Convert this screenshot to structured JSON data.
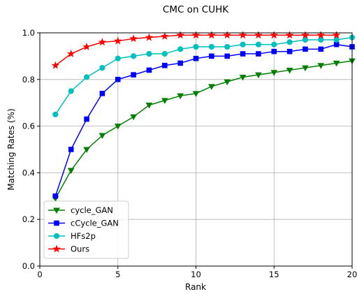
{
  "chart_data": {
    "type": "line",
    "title": "CMC on CUHK",
    "xlabel": "Rank",
    "ylabel": "Matching Rates (%)",
    "xlim": [
      0,
      20
    ],
    "ylim": [
      0,
      1.0
    ],
    "xticks": [
      0,
      5,
      10,
      15,
      20
    ],
    "yticks": [
      0.0,
      0.2,
      0.4,
      0.6,
      0.8,
      1.0
    ],
    "xtick_labels": [
      "0",
      "5",
      "10",
      "15",
      "20"
    ],
    "ytick_labels": [
      "0.0",
      "0.2",
      "0.4",
      "0.6",
      "0.8",
      "1.0"
    ],
    "grid": true,
    "legend_position": "lower-left",
    "x": [
      1,
      2,
      3,
      4,
      5,
      6,
      7,
      8,
      9,
      10,
      11,
      12,
      13,
      14,
      15,
      16,
      17,
      18,
      19,
      20
    ],
    "series": [
      {
        "name": "cycle_GAN",
        "color": "#007f00",
        "marker": "triangle-down",
        "values": [
          0.29,
          0.41,
          0.5,
          0.56,
          0.6,
          0.64,
          0.69,
          0.71,
          0.73,
          0.74,
          0.77,
          0.79,
          0.81,
          0.82,
          0.83,
          0.84,
          0.85,
          0.86,
          0.87,
          0.88
        ]
      },
      {
        "name": "cCycle_GAN",
        "color": "#0000ff",
        "marker": "square",
        "values": [
          0.3,
          0.5,
          0.63,
          0.74,
          0.8,
          0.82,
          0.84,
          0.86,
          0.87,
          0.89,
          0.9,
          0.9,
          0.91,
          0.91,
          0.92,
          0.92,
          0.93,
          0.93,
          0.95,
          0.94
        ]
      },
      {
        "name": "HFs2p",
        "color": "#00bfbf",
        "marker": "circle",
        "values": [
          0.65,
          0.75,
          0.81,
          0.85,
          0.89,
          0.9,
          0.91,
          0.91,
          0.93,
          0.94,
          0.94,
          0.94,
          0.95,
          0.95,
          0.95,
          0.96,
          0.97,
          0.97,
          0.97,
          0.98
        ]
      },
      {
        "name": "Ours",
        "color": "#ff0000",
        "marker": "star",
        "values": [
          0.86,
          0.91,
          0.94,
          0.96,
          0.965,
          0.975,
          0.98,
          0.985,
          0.99,
          0.99,
          0.99,
          0.99,
          0.99,
          0.99,
          0.99,
          0.99,
          0.99,
          0.99,
          0.99,
          null
        ]
      }
    ]
  }
}
